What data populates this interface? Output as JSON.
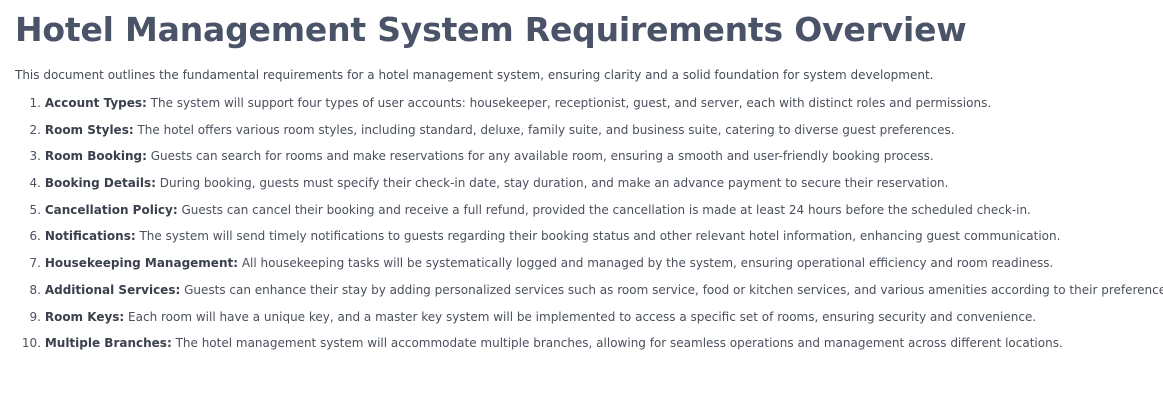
{
  "document": {
    "title": "Hotel Management System Requirements Overview",
    "intro": "This document outlines the fundamental requirements for a hotel management system, ensuring clarity and a solid foundation for system development."
  },
  "requirements": [
    {
      "number": "1.",
      "term": "Account Types:",
      "text": " The system will support four types of user accounts: housekeeper, receptionist, guest, and server, each with distinct roles and permissions."
    },
    {
      "number": "2.",
      "term": "Room Styles:",
      "text": " The hotel offers various room styles, including standard, deluxe, family suite, and business suite, catering to diverse guest preferences."
    },
    {
      "number": "3.",
      "term": "Room Booking:",
      "text": " Guests can search for rooms and make reservations for any available room, ensuring a smooth and user-friendly booking process."
    },
    {
      "number": "4.",
      "term": "Booking Details:",
      "text": " During booking, guests must specify their check-in date, stay duration, and make an advance payment to secure their reservation."
    },
    {
      "number": "5.",
      "term": "Cancellation Policy:",
      "text": " Guests can cancel their booking and receive a full refund, provided the cancellation is made at least 24 hours before the scheduled check-in."
    },
    {
      "number": "6.",
      "term": "Notifications:",
      "text": " The system will send timely notifications to guests regarding their booking status and other relevant hotel information, enhancing guest communication."
    },
    {
      "number": "7.",
      "term": "Housekeeping Management:",
      "text": " All housekeeping tasks will be systematically logged and managed by the system, ensuring operational efficiency and room readiness."
    },
    {
      "number": "8.",
      "term": "Additional Services:",
      "text": " Guests can enhance their stay by adding personalized services such as room service, food or kitchen services, and various amenities according to their preferences."
    },
    {
      "number": "9.",
      "term": "Room Keys:",
      "text": " Each room will have a unique key, and a master key system will be implemented to access a specific set of rooms, ensuring security and convenience."
    },
    {
      "number": "10.",
      "term": "Multiple Branches:",
      "text": " The hotel management system will accommodate multiple branches, allowing for seamless operations and management across different locations."
    }
  ]
}
